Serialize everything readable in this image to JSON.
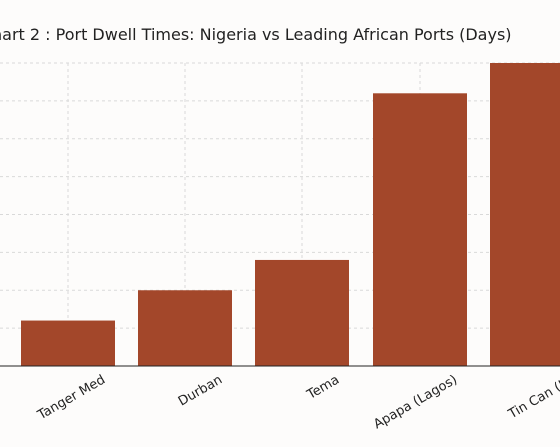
{
  "chart_data": {
    "type": "bar",
    "title": "hart 2 : Port Dwell Times: Nigeria vs Leading African Ports (Days)",
    "xlabel": "",
    "ylabel": "",
    "categories": [
      "Tanger Med",
      "Durban",
      "Tema",
      "Apapa (Lagos)",
      "Tin Can (La"
    ],
    "values": [
      3,
      5,
      7,
      18,
      20
    ],
    "ylim": [
      0,
      20
    ],
    "grid": true,
    "bar_color": "#a3472a"
  }
}
